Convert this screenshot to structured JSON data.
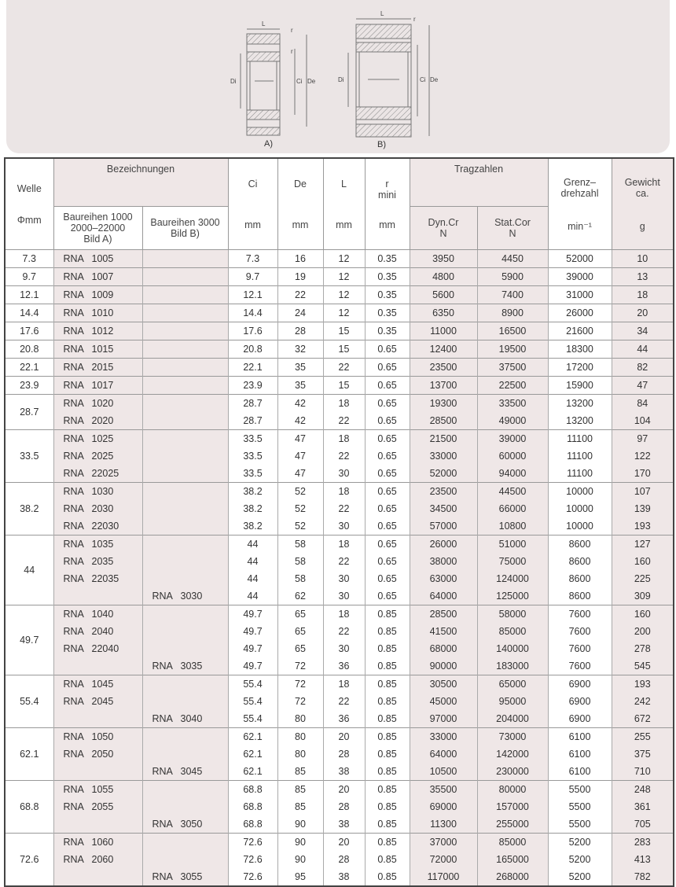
{
  "diagram": {
    "labels_a": {
      "L": "L",
      "r1": "r",
      "r2": "r",
      "Di": "Di",
      "Ci": "Ci",
      "De": "De",
      "caption": "A)"
    },
    "labels_b": {
      "L": "L",
      "r": "r",
      "Di": "Di",
      "Ci": "Ci",
      "De": "De",
      "caption": "B)"
    }
  },
  "header": {
    "welle": "Welle",
    "welle_unit": "Φmm",
    "bezeichnungen": "Bezeichnungen",
    "series_a": [
      "Baureihen 1000",
      "2000–22000",
      "Bild A)"
    ],
    "series_b": [
      "Baureihen 3000",
      "Bild B)"
    ],
    "ci": "Ci",
    "de": "De",
    "l": "L",
    "r": [
      "r",
      "mini"
    ],
    "mm": "mm",
    "tragzahlen": "Tragzahlen",
    "dyn": [
      "Dyn.Cr",
      "N"
    ],
    "stat": [
      "Stat.Cor",
      "N"
    ],
    "grenz": [
      "Grenz–",
      "drehzahl"
    ],
    "grenz_unit": "min⁻¹",
    "gewicht": [
      "Gewicht",
      "ca."
    ],
    "gewicht_unit": "g"
  },
  "groups": [
    {
      "welle": "7.3",
      "rows": [
        {
          "a": [
            "RNA",
            "1005"
          ],
          "b": null,
          "v": [
            "7.3",
            "16",
            "12",
            "0.35",
            "3950",
            "4450",
            "52000",
            "10"
          ]
        }
      ]
    },
    {
      "welle": "9.7",
      "rows": [
        {
          "a": [
            "RNA",
            "1007"
          ],
          "b": null,
          "v": [
            "9.7",
            "19",
            "12",
            "0.35",
            "4800",
            "5900",
            "39000",
            "13"
          ]
        }
      ]
    },
    {
      "welle": "12.1",
      "rows": [
        {
          "a": [
            "RNA",
            "1009"
          ],
          "b": null,
          "v": [
            "12.1",
            "22",
            "12",
            "0.35",
            "5600",
            "7400",
            "31000",
            "18"
          ]
        }
      ]
    },
    {
      "welle": "14.4",
      "rows": [
        {
          "a": [
            "RNA",
            "1010"
          ],
          "b": null,
          "v": [
            "14.4",
            "24",
            "12",
            "0.35",
            "6350",
            "8900",
            "26000",
            "20"
          ]
        }
      ]
    },
    {
      "welle": "17.6",
      "rows": [
        {
          "a": [
            "RNA",
            "1012"
          ],
          "b": null,
          "v": [
            "17.6",
            "28",
            "15",
            "0.35",
            "11000",
            "16500",
            "21600",
            "34"
          ]
        }
      ]
    },
    {
      "welle": "20.8",
      "rows": [
        {
          "a": [
            "RNA",
            "1015"
          ],
          "b": null,
          "v": [
            "20.8",
            "32",
            "15",
            "0.65",
            "12400",
            "19500",
            "18300",
            "44"
          ]
        }
      ]
    },
    {
      "welle": "22.1",
      "rows": [
        {
          "a": [
            "RNA",
            "2015"
          ],
          "b": null,
          "v": [
            "22.1",
            "35",
            "22",
            "0.65",
            "23500",
            "37500",
            "17200",
            "82"
          ]
        }
      ]
    },
    {
      "welle": "23.9",
      "rows": [
        {
          "a": [
            "RNA",
            "1017"
          ],
          "b": null,
          "v": [
            "23.9",
            "35",
            "15",
            "0.65",
            "13700",
            "22500",
            "15900",
            "47"
          ]
        }
      ]
    },
    {
      "welle": "28.7",
      "rows": [
        {
          "a": [
            "RNA",
            "1020"
          ],
          "b": null,
          "v": [
            "28.7",
            "42",
            "18",
            "0.65",
            "19300",
            "33500",
            "13200",
            "84"
          ]
        },
        {
          "a": [
            "RNA",
            "2020"
          ],
          "b": null,
          "v": [
            "28.7",
            "42",
            "22",
            "0.65",
            "28500",
            "49000",
            "13200",
            "104"
          ]
        }
      ]
    },
    {
      "welle": "33.5",
      "rows": [
        {
          "a": [
            "RNA",
            "1025"
          ],
          "b": null,
          "v": [
            "33.5",
            "47",
            "18",
            "0.65",
            "21500",
            "39000",
            "11100",
            "97"
          ]
        },
        {
          "a": [
            "RNA",
            "2025"
          ],
          "b": null,
          "v": [
            "33.5",
            "47",
            "22",
            "0.65",
            "33000",
            "60000",
            "11100",
            "122"
          ]
        },
        {
          "a": [
            "RNA",
            "22025"
          ],
          "b": null,
          "v": [
            "33.5",
            "47",
            "30",
            "0.65",
            "52000",
            "94000",
            "11100",
            "170"
          ]
        }
      ]
    },
    {
      "welle": "38.2",
      "rows": [
        {
          "a": [
            "RNA",
            "1030"
          ],
          "b": null,
          "v": [
            "38.2",
            "52",
            "18",
            "0.65",
            "23500",
            "44500",
            "10000",
            "107"
          ]
        },
        {
          "a": [
            "RNA",
            "2030"
          ],
          "b": null,
          "v": [
            "38.2",
            "52",
            "22",
            "0.65",
            "34500",
            "66000",
            "10000",
            "139"
          ]
        },
        {
          "a": [
            "RNA",
            "22030"
          ],
          "b": null,
          "v": [
            "38.2",
            "52",
            "30",
            "0.65",
            "57000",
            "10800",
            "10000",
            "193"
          ]
        }
      ]
    },
    {
      "welle": "44",
      "rows": [
        {
          "a": [
            "RNA",
            "1035"
          ],
          "b": null,
          "v": [
            "44",
            "58",
            "18",
            "0.65",
            "26000",
            "51000",
            "8600",
            "127"
          ]
        },
        {
          "a": [
            "RNA",
            "2035"
          ],
          "b": null,
          "v": [
            "44",
            "58",
            "22",
            "0.65",
            "38000",
            "75000",
            "8600",
            "160"
          ]
        },
        {
          "a": [
            "RNA",
            "22035"
          ],
          "b": null,
          "v": [
            "44",
            "58",
            "30",
            "0.65",
            "63000",
            "124000",
            "8600",
            "225"
          ]
        },
        {
          "a": null,
          "b": [
            "RNA",
            "3030"
          ],
          "v": [
            "44",
            "62",
            "30",
            "0.65",
            "64000",
            "125000",
            "8600",
            "309"
          ]
        }
      ]
    },
    {
      "welle": "49.7",
      "rows": [
        {
          "a": [
            "RNA",
            "1040"
          ],
          "b": null,
          "v": [
            "49.7",
            "65",
            "18",
            "0.85",
            "28500",
            "58000",
            "7600",
            "160"
          ]
        },
        {
          "a": [
            "RNA",
            "2040"
          ],
          "b": null,
          "v": [
            "49.7",
            "65",
            "22",
            "0.85",
            "41500",
            "85000",
            "7600",
            "200"
          ]
        },
        {
          "a": [
            "RNA",
            "22040"
          ],
          "b": null,
          "v": [
            "49.7",
            "65",
            "30",
            "0.85",
            "68000",
            "140000",
            "7600",
            "278"
          ]
        },
        {
          "a": null,
          "b": [
            "RNA",
            "3035"
          ],
          "v": [
            "49.7",
            "72",
            "36",
            "0.85",
            "90000",
            "183000",
            "7600",
            "545"
          ]
        }
      ]
    },
    {
      "welle": "55.4",
      "rows": [
        {
          "a": [
            "RNA",
            "1045"
          ],
          "b": null,
          "v": [
            "55.4",
            "72",
            "18",
            "0.85",
            "30500",
            "65000",
            "6900",
            "193"
          ]
        },
        {
          "a": [
            "RNA",
            "2045"
          ],
          "b": null,
          "v": [
            "55.4",
            "72",
            "22",
            "0.85",
            "45000",
            "95000",
            "6900",
            "242"
          ]
        },
        {
          "a": null,
          "b": [
            "RNA",
            "3040"
          ],
          "v": [
            "55.4",
            "80",
            "36",
            "0.85",
            "97000",
            "204000",
            "6900",
            "672"
          ]
        }
      ]
    },
    {
      "welle": "62.1",
      "rows": [
        {
          "a": [
            "RNA",
            "1050"
          ],
          "b": null,
          "v": [
            "62.1",
            "80",
            "20",
            "0.85",
            "33000",
            "73000",
            "6100",
            "255"
          ]
        },
        {
          "a": [
            "RNA",
            "2050"
          ],
          "b": null,
          "v": [
            "62.1",
            "80",
            "28",
            "0.85",
            "64000",
            "142000",
            "6100",
            "375"
          ]
        },
        {
          "a": null,
          "b": [
            "RNA",
            "3045"
          ],
          "v": [
            "62.1",
            "85",
            "38",
            "0.85",
            "10500",
            "230000",
            "6100",
            "710"
          ]
        }
      ]
    },
    {
      "welle": "68.8",
      "rows": [
        {
          "a": [
            "RNA",
            "1055"
          ],
          "b": null,
          "v": [
            "68.8",
            "85",
            "20",
            "0.85",
            "35500",
            "80000",
            "5500",
            "248"
          ]
        },
        {
          "a": [
            "RNA",
            "2055"
          ],
          "b": null,
          "v": [
            "68.8",
            "85",
            "28",
            "0.85",
            "69000",
            "157000",
            "5500",
            "361"
          ]
        },
        {
          "a": null,
          "b": [
            "RNA",
            "3050"
          ],
          "v": [
            "68.8",
            "90",
            "38",
            "0.85",
            "11300",
            "255000",
            "5500",
            "705"
          ]
        }
      ]
    },
    {
      "welle": "72.6",
      "rows": [
        {
          "a": [
            "RNA",
            "1060"
          ],
          "b": null,
          "v": [
            "72.6",
            "90",
            "20",
            "0.85",
            "37000",
            "85000",
            "5200",
            "283"
          ]
        },
        {
          "a": [
            "RNA",
            "2060"
          ],
          "b": null,
          "v": [
            "72.6",
            "90",
            "28",
            "0.85",
            "72000",
            "165000",
            "5200",
            "413"
          ]
        },
        {
          "a": null,
          "b": [
            "RNA",
            "3055"
          ],
          "v": [
            "72.6",
            "95",
            "38",
            "0.85",
            "117000",
            "268000",
            "5200",
            "782"
          ]
        }
      ]
    }
  ]
}
